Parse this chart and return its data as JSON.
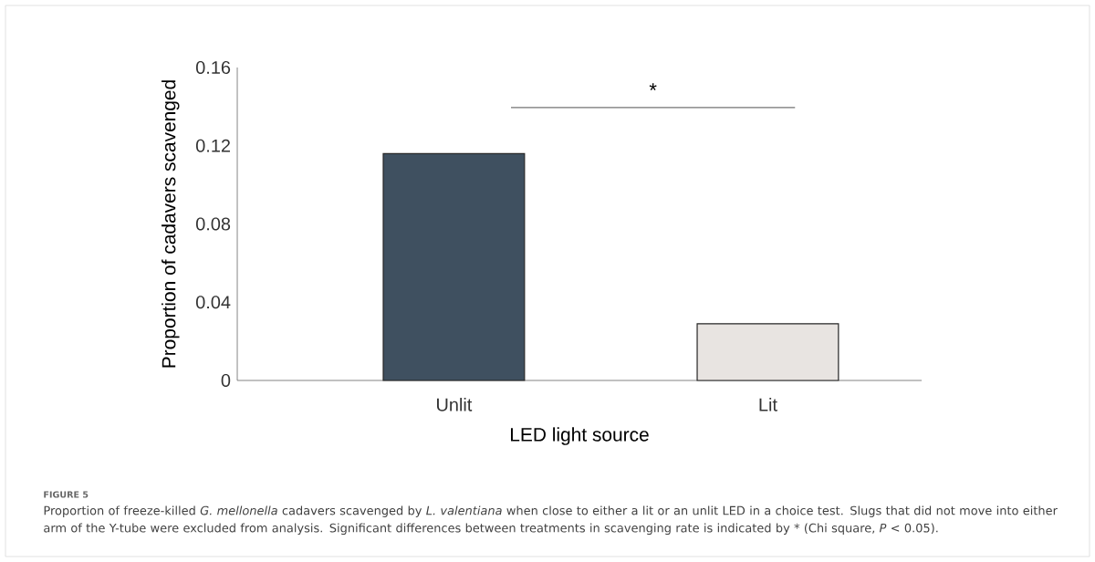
{
  "chart_data": {
    "type": "bar",
    "title": "FIGURE 5",
    "annotations": [
      "*",
      "Proportion of freeze-killed *G. mellonella* cadavers scavenged by *L. valentiana* when close to either a lit or an unlit LED in a choice test. Slugs that did not move into either arm of the Y-tube were excluded from analysis. Significant differences between treatments in scavenging rate is indicated by * (Chi square, *P* < 0.05)."
    ],
    "xlabel": "LED light source",
    "ylabel": "Proportion of cadavers scavenged",
    "categories": [
      "Unlit",
      "Lit"
    ],
    "values": [
      0.116,
      0.029
    ],
    "colors": [
      "#3f5060",
      "#e8e4e1"
    ],
    "ylim": [
      0,
      0.16
    ],
    "yticks": [
      0,
      0.04,
      0.08,
      0.12,
      0.16
    ],
    "grid": false
  }
}
